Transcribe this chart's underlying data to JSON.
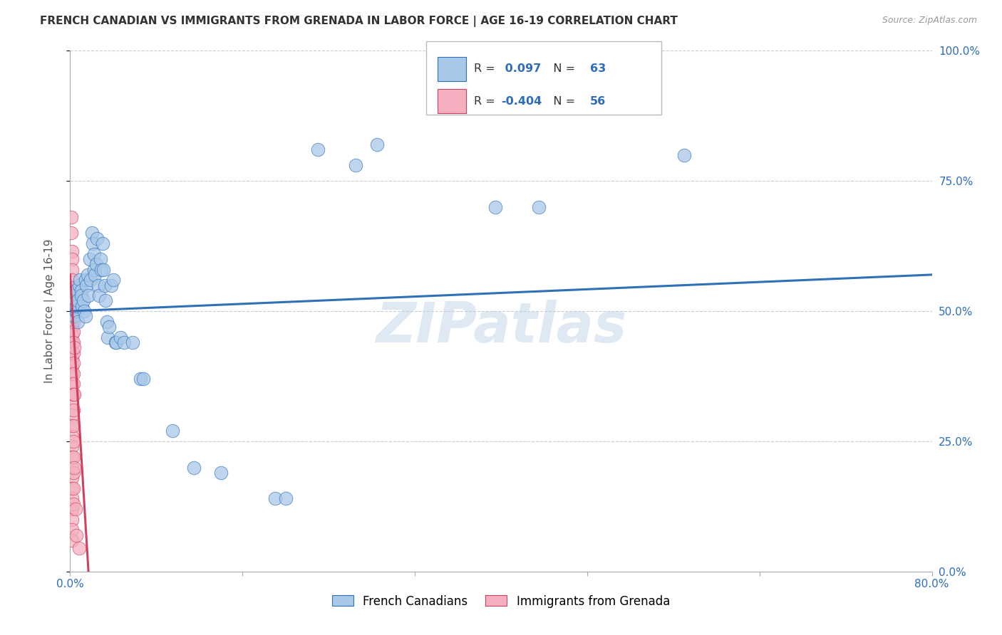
{
  "title": "FRENCH CANADIAN VS IMMIGRANTS FROM GRENADA IN LABOR FORCE | AGE 16-19 CORRELATION CHART",
  "source": "Source: ZipAtlas.com",
  "ylabel": "In Labor Force | Age 16-19",
  "xlim": [
    0.0,
    0.8
  ],
  "ylim": [
    0.0,
    1.0
  ],
  "xticks": [
    0.0,
    0.16,
    0.32,
    0.48,
    0.64,
    0.8
  ],
  "xticklabels": [
    "0.0%",
    "",
    "",
    "",
    "",
    "80.0%"
  ],
  "ytick_right_labels": [
    "0.0%",
    "25.0%",
    "50.0%",
    "75.0%",
    "100.0%"
  ],
  "watermark": "ZIPatlas",
  "blue_color": "#a8c8e8",
  "pink_color": "#f4b0c0",
  "blue_line_color": "#3070b8",
  "pink_line_color": "#d04060",
  "blue_scatter": [
    [
      0.003,
      0.51
    ],
    [
      0.003,
      0.5
    ],
    [
      0.004,
      0.53
    ],
    [
      0.004,
      0.49
    ],
    [
      0.005,
      0.52
    ],
    [
      0.005,
      0.5
    ],
    [
      0.005,
      0.54
    ],
    [
      0.006,
      0.5
    ],
    [
      0.006,
      0.51
    ],
    [
      0.007,
      0.52
    ],
    [
      0.007,
      0.48
    ],
    [
      0.008,
      0.55
    ],
    [
      0.009,
      0.56
    ],
    [
      0.01,
      0.54
    ],
    [
      0.01,
      0.53
    ],
    [
      0.011,
      0.51
    ],
    [
      0.012,
      0.52
    ],
    [
      0.013,
      0.5
    ],
    [
      0.014,
      0.56
    ],
    [
      0.014,
      0.49
    ],
    [
      0.015,
      0.55
    ],
    [
      0.016,
      0.57
    ],
    [
      0.017,
      0.53
    ],
    [
      0.018,
      0.6
    ],
    [
      0.019,
      0.56
    ],
    [
      0.02,
      0.65
    ],
    [
      0.021,
      0.63
    ],
    [
      0.022,
      0.61
    ],
    [
      0.022,
      0.58
    ],
    [
      0.023,
      0.57
    ],
    [
      0.024,
      0.59
    ],
    [
      0.025,
      0.64
    ],
    [
      0.026,
      0.55
    ],
    [
      0.027,
      0.53
    ],
    [
      0.028,
      0.6
    ],
    [
      0.029,
      0.58
    ],
    [
      0.03,
      0.63
    ],
    [
      0.031,
      0.58
    ],
    [
      0.032,
      0.55
    ],
    [
      0.033,
      0.52
    ],
    [
      0.034,
      0.48
    ],
    [
      0.035,
      0.45
    ],
    [
      0.036,
      0.47
    ],
    [
      0.038,
      0.55
    ],
    [
      0.04,
      0.56
    ],
    [
      0.042,
      0.44
    ],
    [
      0.043,
      0.44
    ],
    [
      0.047,
      0.45
    ],
    [
      0.05,
      0.44
    ],
    [
      0.058,
      0.44
    ],
    [
      0.065,
      0.37
    ],
    [
      0.068,
      0.37
    ],
    [
      0.095,
      0.27
    ],
    [
      0.115,
      0.2
    ],
    [
      0.14,
      0.19
    ],
    [
      0.19,
      0.14
    ],
    [
      0.2,
      0.14
    ],
    [
      0.23,
      0.81
    ],
    [
      0.265,
      0.78
    ],
    [
      0.285,
      0.82
    ],
    [
      0.395,
      0.7
    ],
    [
      0.435,
      0.7
    ],
    [
      0.57,
      0.8
    ]
  ],
  "pink_scatter": [
    [
      0.001,
      0.68
    ],
    [
      0.001,
      0.65
    ],
    [
      0.002,
      0.615
    ],
    [
      0.002,
      0.6
    ],
    [
      0.002,
      0.58
    ],
    [
      0.002,
      0.56
    ],
    [
      0.002,
      0.545
    ],
    [
      0.002,
      0.53
    ],
    [
      0.002,
      0.515
    ],
    [
      0.002,
      0.5
    ],
    [
      0.002,
      0.485
    ],
    [
      0.002,
      0.47
    ],
    [
      0.002,
      0.455
    ],
    [
      0.002,
      0.44
    ],
    [
      0.002,
      0.425
    ],
    [
      0.002,
      0.41
    ],
    [
      0.002,
      0.395
    ],
    [
      0.002,
      0.38
    ],
    [
      0.002,
      0.36
    ],
    [
      0.002,
      0.34
    ],
    [
      0.002,
      0.32
    ],
    [
      0.002,
      0.3
    ],
    [
      0.002,
      0.28
    ],
    [
      0.002,
      0.26
    ],
    [
      0.002,
      0.24
    ],
    [
      0.002,
      0.22
    ],
    [
      0.002,
      0.2
    ],
    [
      0.002,
      0.18
    ],
    [
      0.002,
      0.16
    ],
    [
      0.002,
      0.14
    ],
    [
      0.002,
      0.12
    ],
    [
      0.002,
      0.1
    ],
    [
      0.002,
      0.08
    ],
    [
      0.002,
      0.06
    ],
    [
      0.003,
      0.5
    ],
    [
      0.003,
      0.48
    ],
    [
      0.003,
      0.46
    ],
    [
      0.003,
      0.44
    ],
    [
      0.003,
      0.42
    ],
    [
      0.003,
      0.4
    ],
    [
      0.003,
      0.38
    ],
    [
      0.003,
      0.36
    ],
    [
      0.003,
      0.34
    ],
    [
      0.003,
      0.31
    ],
    [
      0.003,
      0.28
    ],
    [
      0.003,
      0.25
    ],
    [
      0.003,
      0.22
    ],
    [
      0.003,
      0.19
    ],
    [
      0.003,
      0.16
    ],
    [
      0.003,
      0.13
    ],
    [
      0.004,
      0.43
    ],
    [
      0.004,
      0.34
    ],
    [
      0.004,
      0.2
    ],
    [
      0.005,
      0.12
    ],
    [
      0.006,
      0.07
    ],
    [
      0.008,
      0.045
    ]
  ],
  "blue_line": {
    "x0": 0.0,
    "y0": 0.5,
    "x1": 0.8,
    "y1": 0.57
  },
  "pink_line": {
    "x0": 0.0,
    "y0": 0.57,
    "x1": 0.017,
    "y1": 0.0
  },
  "grid_color": "#cccccc",
  "background_color": "#ffffff",
  "title_fontsize": 11,
  "axis_label_fontsize": 11,
  "tick_fontsize": 11
}
